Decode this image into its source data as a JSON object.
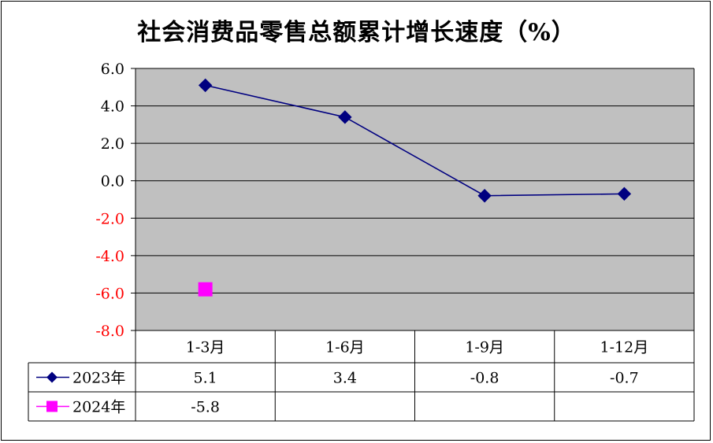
{
  "chart_data": {
    "type": "line",
    "title": "社会消费品零售总额累计增长速度（%）",
    "categories": [
      "1-3月",
      "1-6月",
      "1-9月",
      "1-12月"
    ],
    "series": [
      {
        "name": "2023年",
        "values": [
          5.1,
          3.4,
          -0.8,
          -0.7
        ],
        "value_labels": [
          "5.1",
          "3.4",
          "-0.8",
          "-0.7"
        ],
        "color": "#000080",
        "marker": "diamond"
      },
      {
        "name": "2024年",
        "values": [
          -5.8,
          null,
          null,
          null
        ],
        "value_labels": [
          "-5.8",
          "",
          "",
          ""
        ],
        "color": "#ff00ff",
        "marker": "square"
      }
    ],
    "ylim": [
      -8.0,
      6.0
    ],
    "yticks": [
      6.0,
      4.0,
      2.0,
      0.0,
      -2.0,
      -4.0,
      -6.0,
      -8.0
    ],
    "ytick_labels": [
      "6.0",
      "4.0",
      "2.0",
      "0.0",
      "-2.0",
      "-4.0",
      "-6.0",
      "-8.0"
    ],
    "grid": true,
    "plot_background": "#c0c0c0",
    "positive_tick_color": "#000000",
    "negative_tick_color": "#ff0000",
    "legend": "data-table"
  }
}
